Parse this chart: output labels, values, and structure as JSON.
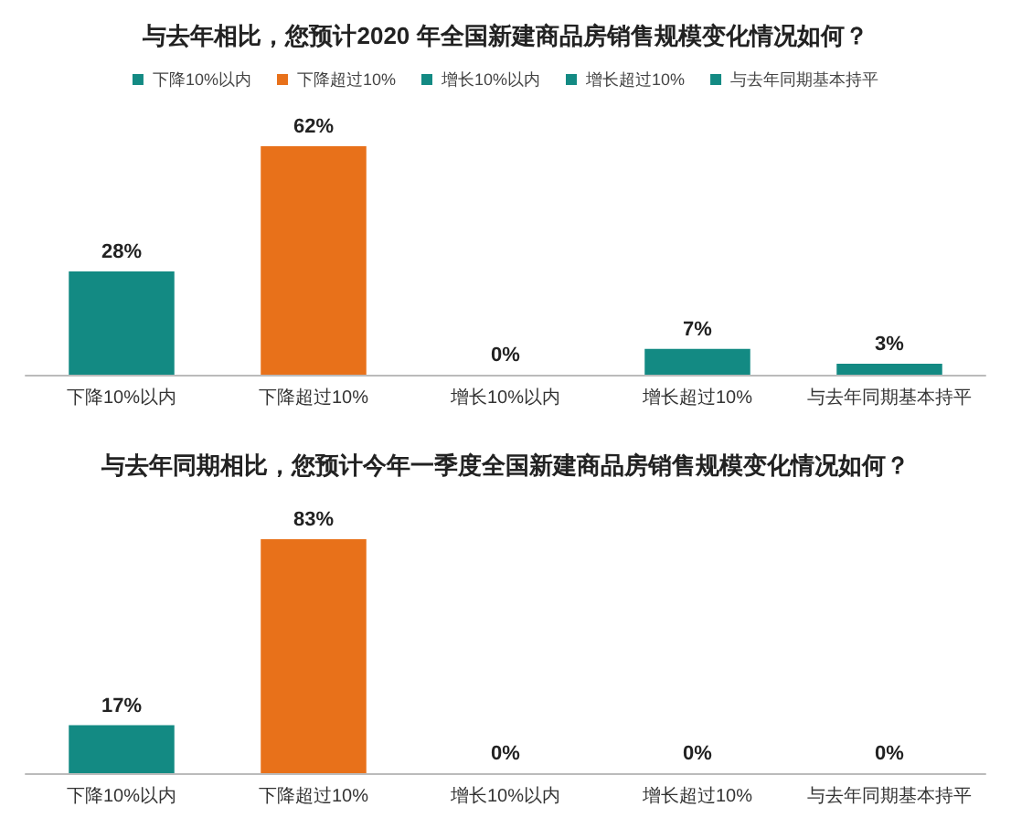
{
  "chart_data": [
    {
      "type": "bar",
      "title": "与去年相比，您预计2020 年全国新建商品房销售规模变化情况如何？",
      "categories": [
        "下降10%以内",
        "下降超过10%",
        "增长10%以内",
        "增长超过10%",
        "与去年同期基本持平"
      ],
      "legend": "top",
      "grid": false,
      "series": [
        {
          "name": "下降10%以内",
          "color": "#138a83",
          "values": [
            28,
            null,
            null,
            null,
            null
          ],
          "value_labels": [
            "28%",
            null,
            null,
            null,
            null
          ]
        },
        {
          "name": "下降超过10%",
          "color": "#e8711a",
          "values": [
            null,
            62,
            null,
            null,
            null
          ],
          "value_labels": [
            null,
            "62%",
            null,
            null,
            null
          ]
        },
        {
          "name": "增长10%以内",
          "color": "#138a83",
          "values": [
            null,
            null,
            0,
            null,
            null
          ],
          "value_labels": [
            null,
            null,
            "0%",
            null,
            null
          ]
        },
        {
          "name": "增长超过10%",
          "color": "#138a83",
          "values": [
            null,
            null,
            null,
            7,
            null
          ],
          "value_labels": [
            null,
            null,
            null,
            "7%",
            null
          ]
        },
        {
          "name": "与去年同期基本持平",
          "color": "#138a83",
          "values": [
            null,
            null,
            null,
            null,
            3
          ],
          "value_labels": [
            null,
            null,
            null,
            null,
            "3%"
          ]
        }
      ]
    },
    {
      "type": "bar",
      "title": "与去年同期相比，您预计今年一季度全国新建商品房销售规模变化情况如何？",
      "categories": [
        "下降10%以内",
        "下降超过10%",
        "增长10%以内",
        "增长超过10%",
        "与去年同期基本持平"
      ],
      "grid": false,
      "values": [
        17,
        83,
        0,
        0,
        0
      ],
      "colors": [
        "#138a83",
        "#e8711a",
        "#138a83",
        "#138a83",
        "#138a83"
      ],
      "value_labels": [
        "17%",
        "83%",
        "0%",
        "0%",
        "0%"
      ]
    }
  ]
}
